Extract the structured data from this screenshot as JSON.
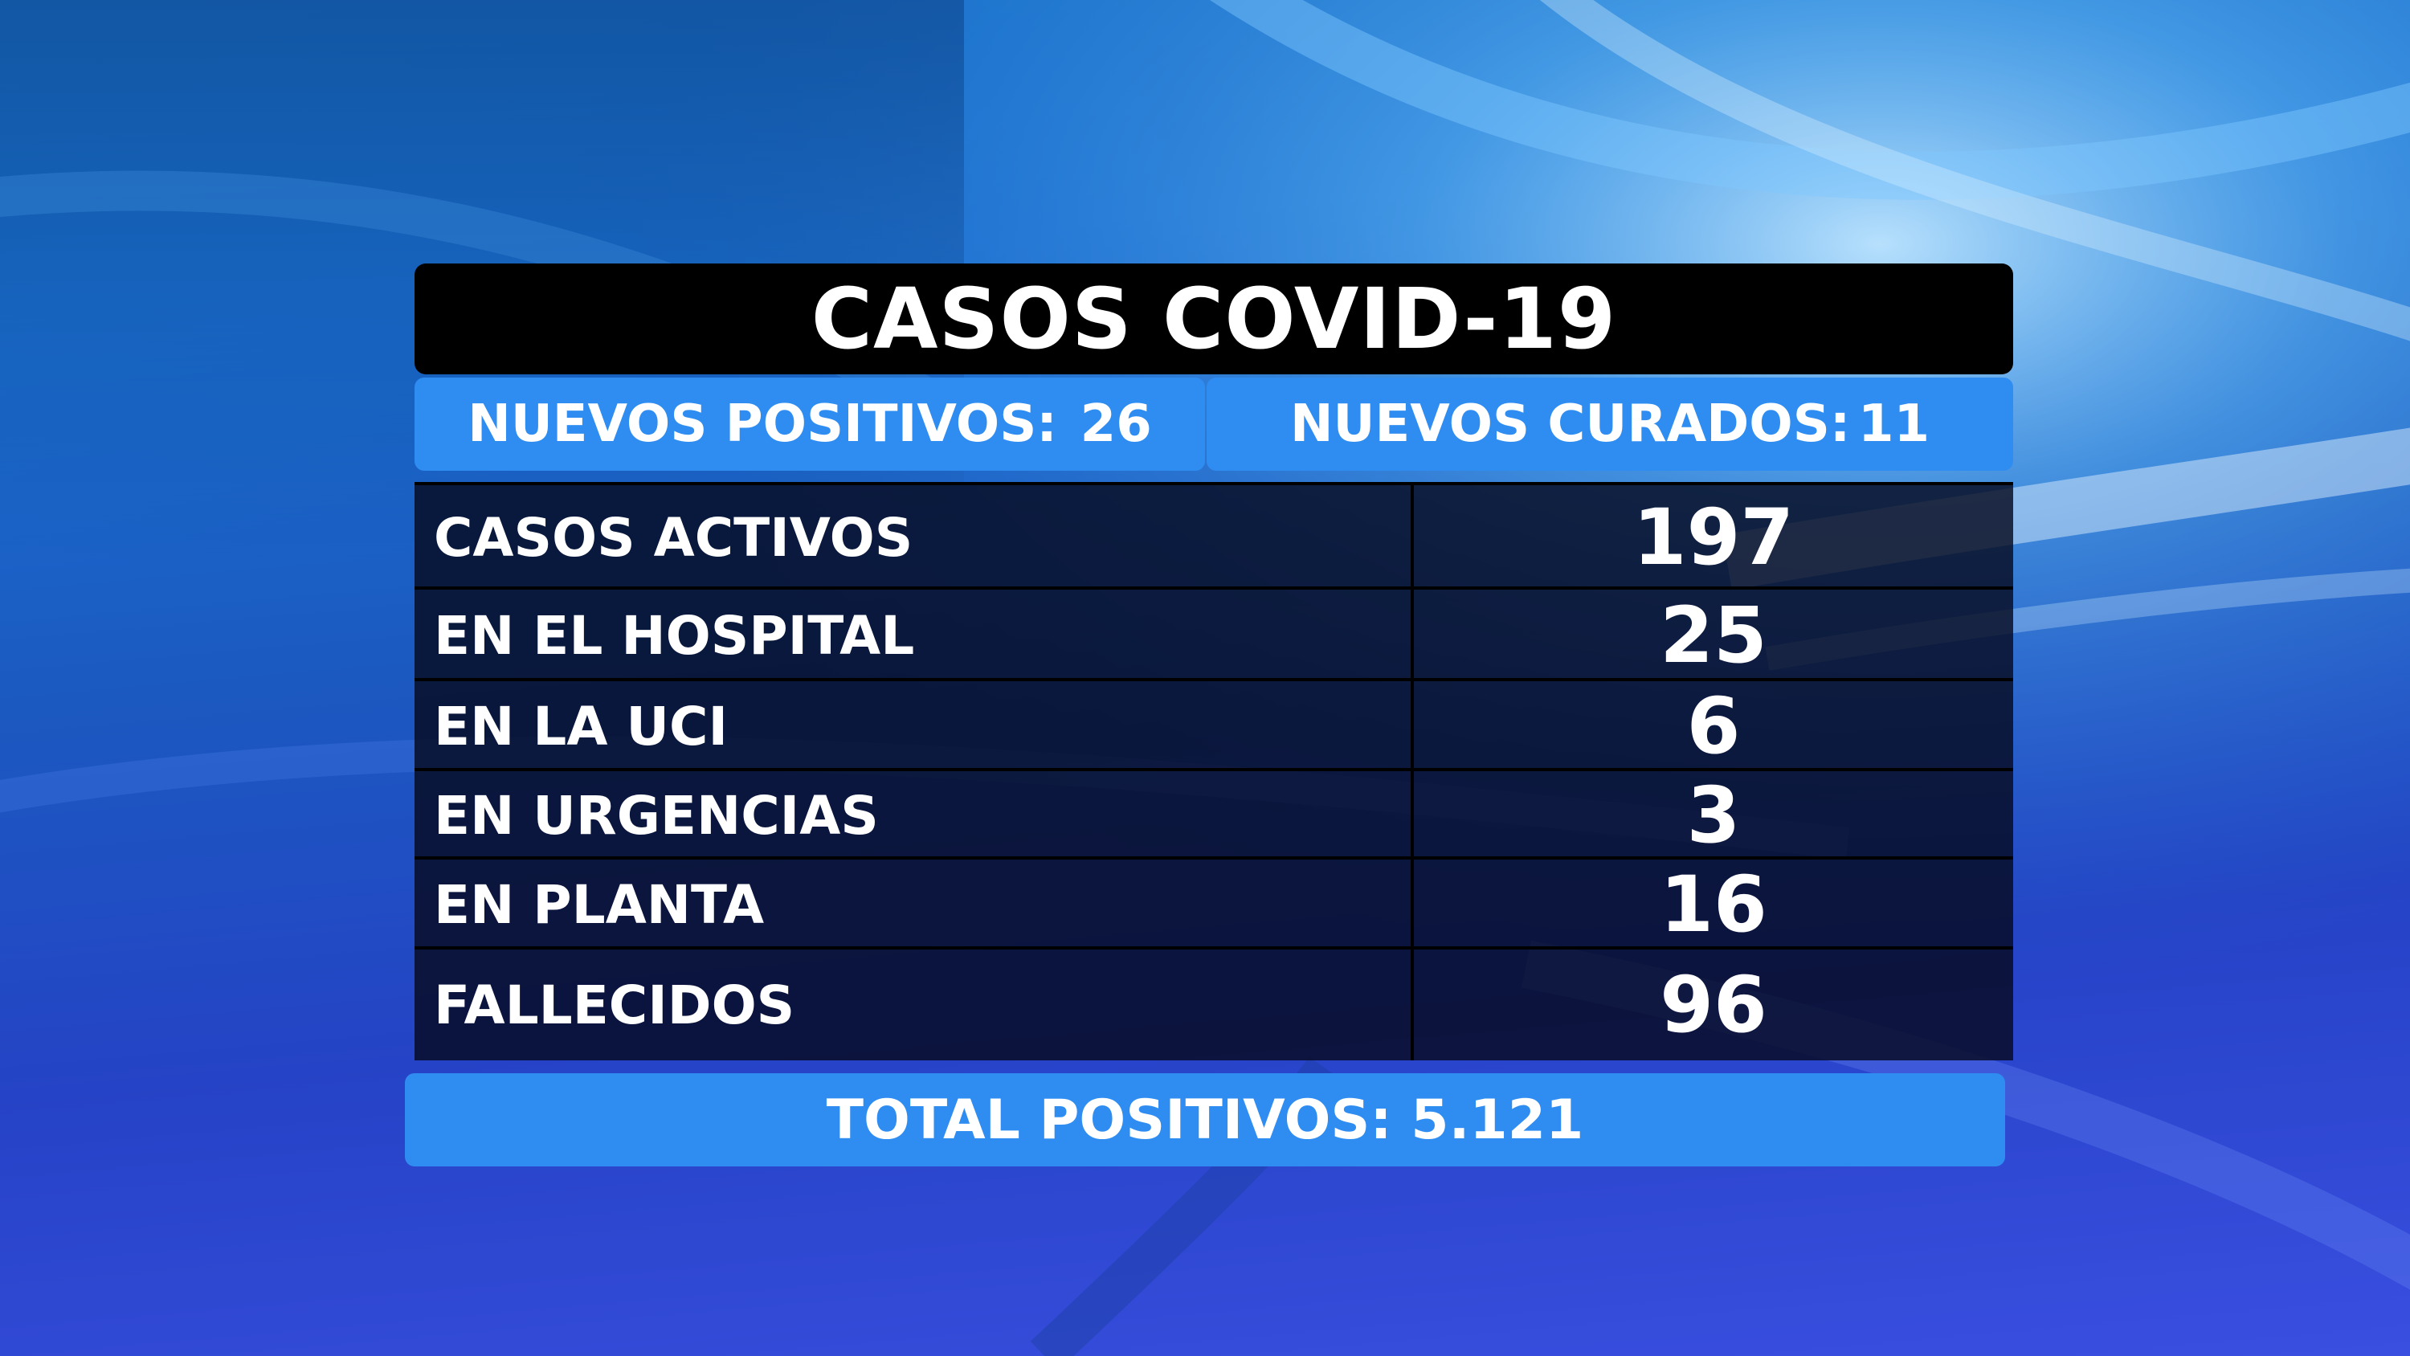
{
  "title": "CASOS COVID-19",
  "nuevos_positivos": {
    "label": "NUEVOS POSITIVOS:",
    "value": "26"
  },
  "nuevos_curados": {
    "label": "NUEVOS CURADOS:",
    "value": "11"
  },
  "rows": [
    {
      "label": "CASOS ACTIVOS",
      "value": "197"
    },
    {
      "label": "EN EL HOSPITAL",
      "value": "25"
    },
    {
      "label": "EN LA UCI",
      "value": "6"
    },
    {
      "label": "EN URGENCIAS",
      "value": "3"
    },
    {
      "label": "EN PLANTA",
      "value": "16"
    },
    {
      "label": "FALLECIDOS",
      "value": "96"
    }
  ],
  "total": "TOTAL POSITIVOS: 5.121",
  "colors": {
    "title_bg": "#000000",
    "accent_blue": "#2f8df2",
    "table_bg": "#060a20",
    "text": "#ffffff"
  }
}
